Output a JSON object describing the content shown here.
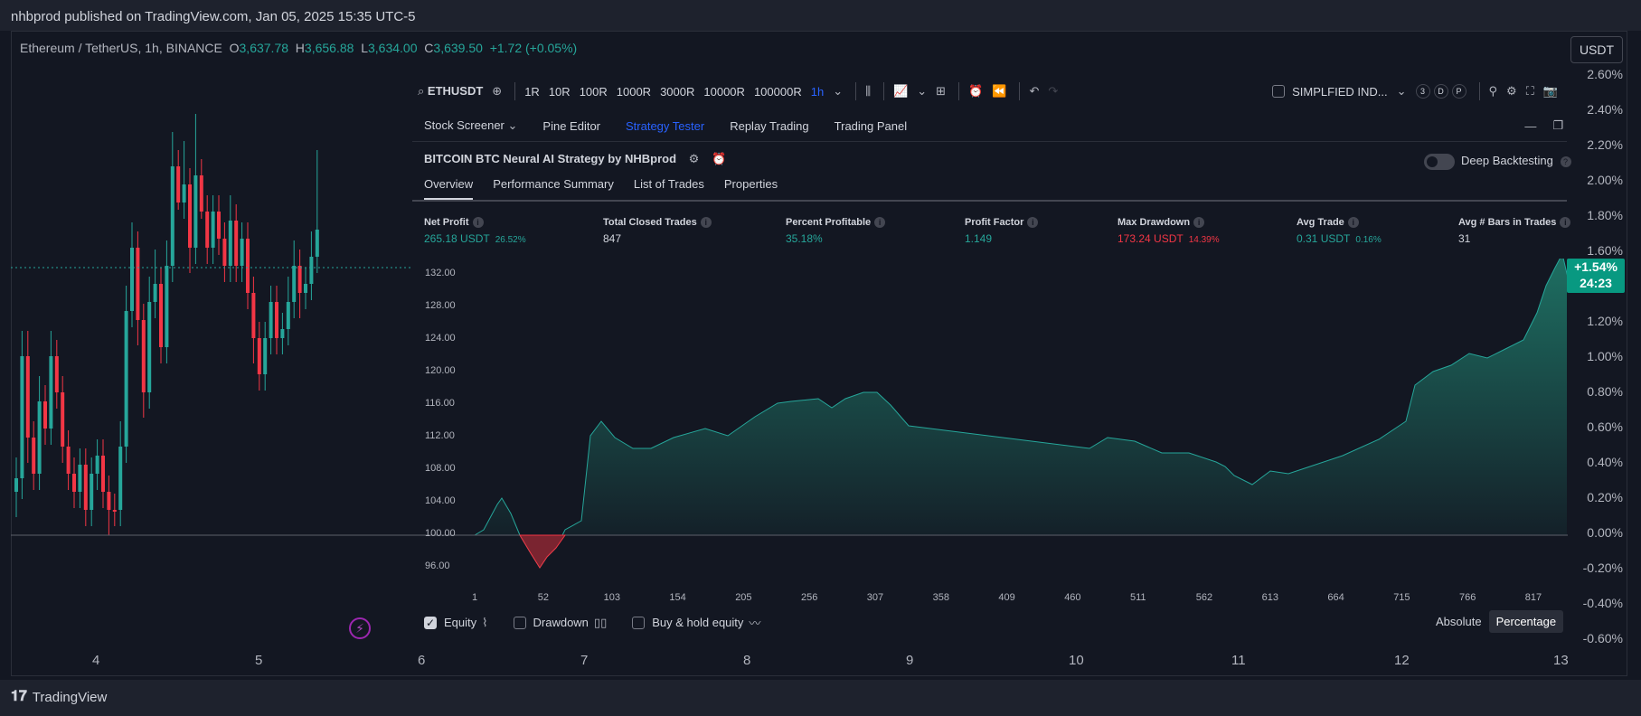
{
  "publish": {
    "text": "nhbprod published on TradingView.com, Jan 05, 2025 15:35 UTC-5"
  },
  "footer": {
    "logo_text": "TradingView"
  },
  "legend": {
    "symbol": "Ethereum / TetherUS, 1h, BINANCE",
    "o_label": "O",
    "o_val": "3,637.78",
    "h_label": "H",
    "h_val": "3,656.88",
    "l_label": "L",
    "l_val": "3,634.00",
    "c_label": "C",
    "c_val": "3,639.50",
    "chg": "+1.72 (+0.05%)"
  },
  "currency_button": "USDT",
  "price_axis": [
    "2.60%",
    "2.40%",
    "2.20%",
    "2.00%",
    "1.80%",
    "1.60%",
    "1.40%",
    "1.20%",
    "1.00%",
    "0.80%",
    "0.60%",
    "0.40%",
    "0.20%",
    "0.00%",
    "-0.20%",
    "-0.40%",
    "-0.60%"
  ],
  "price_tag": {
    "pct": "+1.54%",
    "time": "24:23"
  },
  "time_axis": [
    "4",
    "5",
    "6",
    "7",
    "8",
    "9",
    "10",
    "11",
    "12",
    "13"
  ],
  "toolbar": {
    "symbol": "ETHUSDT",
    "intervals": [
      "1R",
      "10R",
      "100R",
      "1000R",
      "3000R",
      "10000R",
      "100000R",
      "1h"
    ],
    "indicator_label": "SIMPLFIED IND...",
    "badges": [
      "3",
      "D",
      "P"
    ]
  },
  "bottom_tabs": [
    "Stock Screener",
    "Pine Editor",
    "Strategy Tester",
    "Replay Trading",
    "Trading Panel"
  ],
  "strategy": {
    "title": "BITCOIN BTC Neural AI Strategy by NHBprod",
    "deep_label": "Deep Backtesting",
    "tabs": [
      "Overview",
      "Performance Summary",
      "List of Trades",
      "Properties"
    ]
  },
  "metrics": [
    {
      "label": "Net Profit",
      "value": "265.18 USDT",
      "pct": "26.52%",
      "color": "green"
    },
    {
      "label": "Total Closed Trades",
      "value": "847",
      "pct": "",
      "color": "white"
    },
    {
      "label": "Percent Profitable",
      "value": "35.18%",
      "pct": "",
      "color": "green"
    },
    {
      "label": "Profit Factor",
      "value": "1.149",
      "pct": "",
      "color": "green"
    },
    {
      "label": "Max Drawdown",
      "value": "173.24 USDT",
      "pct": "14.39%",
      "color": "red"
    },
    {
      "label": "Avg Trade",
      "value": "0.31 USDT",
      "pct": "0.16%",
      "color": "green"
    },
    {
      "label": "Avg # Bars in Trades",
      "value": "31",
      "pct": "",
      "color": "white"
    }
  ],
  "equity_axis": [
    "132.00",
    "128.00",
    "124.00",
    "120.00",
    "116.00",
    "112.00",
    "108.00",
    "104.00",
    "100.00",
    "96.00"
  ],
  "trade_axis": [
    "1",
    "52",
    "103",
    "154",
    "205",
    "256",
    "307",
    "358",
    "409",
    "460",
    "511",
    "562",
    "613",
    "664",
    "715",
    "766",
    "817"
  ],
  "options": {
    "equity": "Equity",
    "drawdown": "Drawdown",
    "buyhold": "Buy & hold equity"
  },
  "modes": {
    "absolute": "Absolute",
    "percentage": "Percentage"
  },
  "colors": {
    "up": "#26a69a",
    "down": "#f23645",
    "accent": "#2962ff",
    "equity": "#1f8a78"
  }
}
